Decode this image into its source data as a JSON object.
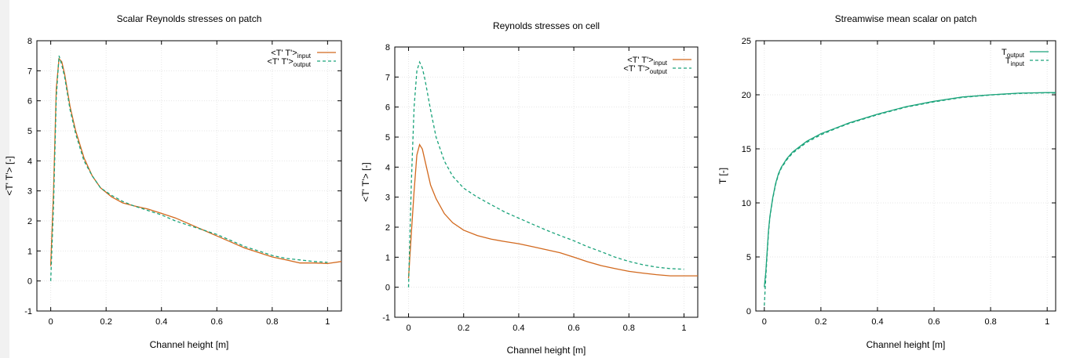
{
  "colors": {
    "input": "#d2691e",
    "output": "#1aa37a",
    "left_strip": "#f1f1f1"
  },
  "chart_data": [
    {
      "type": "line",
      "title": "Scalar Reynolds stresses on patch",
      "xlabel": "Channel height [m]",
      "ylabel": "<T' T'> [-]",
      "xlim": [
        -0.05,
        1.05
      ],
      "ylim": [
        -1,
        8
      ],
      "xticks": [
        0,
        0.2,
        0.4,
        0.6,
        0.8,
        1
      ],
      "xtick_labels": [
        "0",
        "0.2",
        "0.4",
        "0.6",
        "0.8",
        "1"
      ],
      "yticks": [
        -1,
        0,
        1,
        2,
        3,
        4,
        5,
        6,
        7,
        8
      ],
      "ytick_labels": [
        "-1",
        "0",
        "1",
        "2",
        "3",
        "4",
        "5",
        "6",
        "7",
        "8"
      ],
      "grid": true,
      "legend_position": "top-right",
      "series": [
        {
          "name": "<T' T'>",
          "name_sub": "input",
          "style": "solid",
          "color_key": "input",
          "x": [
            0,
            0.01,
            0.02,
            0.03,
            0.04,
            0.05,
            0.07,
            0.09,
            0.12,
            0.15,
            0.18,
            0.22,
            0.26,
            0.3,
            0.35,
            0.4,
            0.45,
            0.5,
            0.55,
            0.6,
            0.65,
            0.7,
            0.75,
            0.8,
            0.85,
            0.9,
            0.95,
            1.0,
            1.05
          ],
          "y": [
            0.5,
            3.0,
            6.4,
            7.4,
            7.3,
            6.9,
            5.8,
            5.0,
            4.1,
            3.5,
            3.1,
            2.8,
            2.6,
            2.5,
            2.4,
            2.25,
            2.1,
            1.9,
            1.7,
            1.5,
            1.3,
            1.1,
            0.95,
            0.8,
            0.7,
            0.6,
            0.6,
            0.58,
            0.65
          ]
        },
        {
          "name": "<T' T'>",
          "name_sub": "output",
          "style": "dashed",
          "color_key": "output",
          "x": [
            0,
            0.01,
            0.02,
            0.03,
            0.04,
            0.05,
            0.07,
            0.09,
            0.12,
            0.15,
            0.18,
            0.22,
            0.26,
            0.3,
            0.35,
            0.4,
            0.45,
            0.5,
            0.55,
            0.6,
            0.65,
            0.7,
            0.75,
            0.8,
            0.85,
            0.9,
            0.95,
            1.0
          ],
          "y": [
            0.0,
            2.5,
            6.1,
            7.5,
            7.2,
            6.8,
            5.7,
            4.9,
            4.0,
            3.5,
            3.1,
            2.85,
            2.65,
            2.5,
            2.35,
            2.2,
            2.0,
            1.85,
            1.7,
            1.55,
            1.35,
            1.15,
            1.0,
            0.85,
            0.75,
            0.7,
            0.65,
            0.62
          ]
        }
      ]
    },
    {
      "type": "line",
      "title": "Reynolds stresses on cell",
      "xlabel": "Channel height [m]",
      "ylabel": "<T' T'> [-]",
      "xlim": [
        -0.05,
        1.05
      ],
      "ylim": [
        -1,
        8
      ],
      "xticks": [
        0,
        0.2,
        0.4,
        0.6,
        0.8,
        1
      ],
      "xtick_labels": [
        "0",
        "0.2",
        "0.4",
        "0.6",
        "0.8",
        "1"
      ],
      "yticks": [
        -1,
        0,
        1,
        2,
        3,
        4,
        5,
        6,
        7,
        8
      ],
      "ytick_labels": [
        "-1",
        "0",
        "1",
        "2",
        "3",
        "4",
        "5",
        "6",
        "7",
        "8"
      ],
      "grid": true,
      "legend_position": "top-right",
      "series": [
        {
          "name": "<T' T'>",
          "name_sub": "input",
          "style": "solid",
          "color_key": "input",
          "x": [
            0,
            0.01,
            0.02,
            0.03,
            0.04,
            0.05,
            0.06,
            0.08,
            0.1,
            0.13,
            0.16,
            0.2,
            0.25,
            0.3,
            0.35,
            0.4,
            0.45,
            0.5,
            0.55,
            0.6,
            0.65,
            0.7,
            0.75,
            0.8,
            0.85,
            0.9,
            0.95,
            1.0,
            1.05
          ],
          "y": [
            0.3,
            1.8,
            3.2,
            4.4,
            4.75,
            4.6,
            4.2,
            3.4,
            2.95,
            2.45,
            2.15,
            1.9,
            1.72,
            1.6,
            1.52,
            1.45,
            1.35,
            1.25,
            1.15,
            1.0,
            0.85,
            0.72,
            0.62,
            0.53,
            0.47,
            0.42,
            0.38,
            0.38,
            0.38
          ]
        },
        {
          "name": "<T' T'>",
          "name_sub": "output",
          "style": "dashed",
          "color_key": "output",
          "x": [
            0,
            0.01,
            0.02,
            0.03,
            0.04,
            0.05,
            0.06,
            0.08,
            0.1,
            0.13,
            0.16,
            0.2,
            0.25,
            0.3,
            0.35,
            0.4,
            0.45,
            0.5,
            0.55,
            0.6,
            0.65,
            0.7,
            0.75,
            0.8,
            0.85,
            0.9,
            0.95,
            1.0
          ],
          "y": [
            0.0,
            3.5,
            6.0,
            7.2,
            7.5,
            7.3,
            6.9,
            5.9,
            5.0,
            4.2,
            3.7,
            3.3,
            3.0,
            2.75,
            2.5,
            2.3,
            2.1,
            1.9,
            1.72,
            1.55,
            1.35,
            1.18,
            1.0,
            0.86,
            0.75,
            0.67,
            0.62,
            0.6
          ]
        }
      ]
    },
    {
      "type": "line",
      "title": "Streamwise mean scalar on patch",
      "xlabel": "Channel height [m]",
      "ylabel": "T [-]",
      "xlim": [
        -0.03,
        1.03
      ],
      "ylim": [
        0,
        25
      ],
      "xticks": [
        0,
        0.2,
        0.4,
        0.6,
        0.8,
        1
      ],
      "xtick_labels": [
        "0",
        "0.2",
        "0.4",
        "0.6",
        "0.8",
        "1"
      ],
      "yticks": [
        0,
        5,
        10,
        15,
        20,
        25
      ],
      "ytick_labels": [
        "0",
        "5",
        "10",
        "15",
        "20",
        "25"
      ],
      "grid": true,
      "legend_position": "top-right",
      "series": [
        {
          "name": "T",
          "name_sub": "output",
          "style": "solid",
          "color_key": "output",
          "x": [
            0,
            0.005,
            0.01,
            0.015,
            0.02,
            0.03,
            0.04,
            0.05,
            0.06,
            0.08,
            0.1,
            0.15,
            0.2,
            0.25,
            0.3,
            0.4,
            0.5,
            0.6,
            0.7,
            0.8,
            0.9,
            1.0,
            1.03
          ],
          "y": [
            2.2,
            3.5,
            5.5,
            7.5,
            8.8,
            10.5,
            11.8,
            12.7,
            13.3,
            14.1,
            14.7,
            15.7,
            16.4,
            16.9,
            17.4,
            18.2,
            18.9,
            19.4,
            19.8,
            20.0,
            20.15,
            20.2,
            20.2
          ]
        },
        {
          "name": "T",
          "name_sub": "input",
          "style": "dashed",
          "color_key": "output",
          "x": [
            0,
            0.005,
            0.01,
            0.015,
            0.02,
            0.03,
            0.04,
            0.05,
            0.06,
            0.08,
            0.1,
            0.15,
            0.2,
            0.25,
            0.3,
            0.4,
            0.5,
            0.6,
            0.7,
            0.8,
            0.9,
            1.0,
            1.03
          ],
          "y": [
            0.5,
            3.0,
            5.2,
            7.3,
            8.7,
            10.4,
            11.7,
            12.6,
            13.2,
            14.0,
            14.6,
            15.6,
            16.3,
            16.85,
            17.35,
            18.15,
            18.85,
            19.35,
            19.75,
            19.98,
            20.12,
            20.18,
            20.15
          ]
        }
      ]
    }
  ]
}
